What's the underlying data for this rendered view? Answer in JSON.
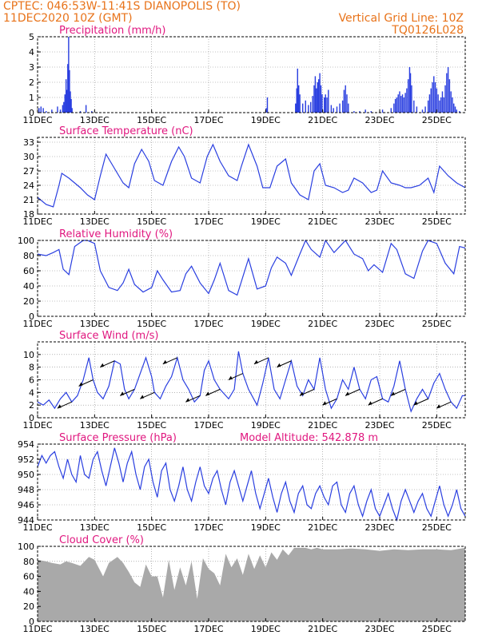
{
  "header": {
    "station": "CPTEC:   046:53W-11:41S   DIANOPOLIS (TO)",
    "run": "11DEC2020 10Z (GMT)",
    "grid_note": "Vertical Grid Line: 10Z",
    "model": "TQ0126L028"
  },
  "colors": {
    "header": "#e8731a",
    "title": "#e0177f",
    "series": "#2a3fe0",
    "cloud": "#a9a9a9",
    "frame": "#000000",
    "grid": "#888888"
  },
  "chart_data": [
    {
      "id": "precip",
      "type": "bar",
      "title": "Precipitation (mm/h)",
      "x_ticks": [
        "11DEC",
        "13DEC",
        "15DEC",
        "17DEC",
        "19DEC",
        "21DEC",
        "23DEC",
        "25DEC"
      ],
      "xlim": [
        0,
        15
      ],
      "ylim": [
        0,
        5
      ],
      "y_ticks": [
        0,
        1,
        2,
        3,
        4,
        5
      ],
      "grid": "dotted",
      "bar_width_days": 0.04,
      "values": [
        [
          0.05,
          0.3
        ],
        [
          0.12,
          0.4
        ],
        [
          0.2,
          0.3
        ],
        [
          0.3,
          0.1
        ],
        [
          0.5,
          0.2
        ],
        [
          0.7,
          0.4
        ],
        [
          0.8,
          0.2
        ],
        [
          0.88,
          0.5
        ],
        [
          0.92,
          0.7
        ],
        [
          0.96,
          1.2
        ],
        [
          1.0,
          2.2
        ],
        [
          1.03,
          1.5
        ],
        [
          1.06,
          3.2
        ],
        [
          1.09,
          5.0
        ],
        [
          1.12,
          2.8
        ],
        [
          1.15,
          1.4
        ],
        [
          1.18,
          0.9
        ],
        [
          1.21,
          0.3
        ],
        [
          1.5,
          0.1
        ],
        [
          1.7,
          0.5
        ],
        [
          1.9,
          0.1
        ],
        [
          8.02,
          0.3
        ],
        [
          8.06,
          1.0
        ],
        [
          9.05,
          0.6
        ],
        [
          9.09,
          1.6
        ],
        [
          9.12,
          2.9
        ],
        [
          9.16,
          1.8
        ],
        [
          9.2,
          1.2
        ],
        [
          9.3,
          0.6
        ],
        [
          9.4,
          0.8
        ],
        [
          9.5,
          0.5
        ],
        [
          9.58,
          0.7
        ],
        [
          9.65,
          1.1
        ],
        [
          9.7,
          1.8
        ],
        [
          9.74,
          2.4
        ],
        [
          9.78,
          1.6
        ],
        [
          9.82,
          2.0
        ],
        [
          9.86,
          2.2
        ],
        [
          9.9,
          2.6
        ],
        [
          9.94,
          1.8
        ],
        [
          9.98,
          1.2
        ],
        [
          10.06,
          1.0
        ],
        [
          10.1,
          1.2
        ],
        [
          10.15,
          1.0
        ],
        [
          10.2,
          1.5
        ],
        [
          10.3,
          0.5
        ],
        [
          10.38,
          0.3
        ],
        [
          10.5,
          0.4
        ],
        [
          10.6,
          0.6
        ],
        [
          10.7,
          0.8
        ],
        [
          10.75,
          1.5
        ],
        [
          10.8,
          1.8
        ],
        [
          10.85,
          1.2
        ],
        [
          10.9,
          0.6
        ],
        [
          11.1,
          0.1
        ],
        [
          11.3,
          0.1
        ],
        [
          11.5,
          0.2
        ],
        [
          11.7,
          0.1
        ],
        [
          12.1,
          0.2
        ],
        [
          12.4,
          0.3
        ],
        [
          12.5,
          0.6
        ],
        [
          12.55,
          0.9
        ],
        [
          12.6,
          1.0
        ],
        [
          12.65,
          1.2
        ],
        [
          12.7,
          1.4
        ],
        [
          12.75,
          1.1
        ],
        [
          12.8,
          1.2
        ],
        [
          12.85,
          1.0
        ],
        [
          12.9,
          1.3
        ],
        [
          12.95,
          1.6
        ],
        [
          13.0,
          2.2
        ],
        [
          13.05,
          3.0
        ],
        [
          13.08,
          2.6
        ],
        [
          13.12,
          1.8
        ],
        [
          13.2,
          0.8
        ],
        [
          13.3,
          0.4
        ],
        [
          13.5,
          0.2
        ],
        [
          13.6,
          0.4
        ],
        [
          13.7,
          0.8
        ],
        [
          13.75,
          1.2
        ],
        [
          13.8,
          1.6
        ],
        [
          13.85,
          2.0
        ],
        [
          13.9,
          2.4
        ],
        [
          13.95,
          2.0
        ],
        [
          14.0,
          1.6
        ],
        [
          14.05,
          1.2
        ],
        [
          14.1,
          0.8
        ],
        [
          14.15,
          1.0
        ],
        [
          14.2,
          1.4
        ],
        [
          14.25,
          1.0
        ],
        [
          14.3,
          1.8
        ],
        [
          14.35,
          2.6
        ],
        [
          14.4,
          3.0
        ],
        [
          14.45,
          2.2
        ],
        [
          14.5,
          1.4
        ],
        [
          14.55,
          1.0
        ],
        [
          14.6,
          0.6
        ],
        [
          14.65,
          0.4
        ],
        [
          14.7,
          0.2
        ],
        [
          14.8,
          0.1
        ]
      ]
    },
    {
      "id": "temp",
      "type": "line",
      "title": "Surface Temperature (nC)",
      "x_ticks": [
        "11DEC",
        "13DEC",
        "15DEC",
        "17DEC",
        "19DEC",
        "21DEC",
        "23DEC",
        "25DEC"
      ],
      "xlim": [
        0,
        15
      ],
      "ylim": [
        18,
        34
      ],
      "y_ticks": [
        18,
        21,
        24,
        27,
        30,
        33
      ],
      "grid": "dotted",
      "x": [
        0,
        0.3,
        0.55,
        0.75,
        0.85,
        1.1,
        1.5,
        1.75,
        2.0,
        2.2,
        2.4,
        2.65,
        3.0,
        3.2,
        3.4,
        3.65,
        3.9,
        4.1,
        4.4,
        4.7,
        4.95,
        5.15,
        5.4,
        5.7,
        5.95,
        6.15,
        6.4,
        6.7,
        7.0,
        7.15,
        7.4,
        7.7,
        7.9,
        8.15,
        8.4,
        8.7,
        8.9,
        9.2,
        9.5,
        9.7,
        9.9,
        10.1,
        10.4,
        10.7,
        10.9,
        11.1,
        11.4,
        11.7,
        11.9,
        12.1,
        12.4,
        12.7,
        12.9,
        13.1,
        13.4,
        13.7,
        13.9,
        14.1,
        14.4,
        14.7,
        15.0
      ],
      "y": [
        21.5,
        20.0,
        19.5,
        24,
        26.5,
        25.5,
        23.5,
        22.0,
        21.0,
        26,
        30.5,
        28,
        24.5,
        23.5,
        28.5,
        31.5,
        29,
        25.0,
        24.0,
        29,
        32.0,
        30,
        25.5,
        24.5,
        30,
        32.5,
        29,
        26.0,
        25.0,
        28,
        32.5,
        28,
        23.5,
        23.5,
        28,
        29.5,
        24.5,
        22.0,
        21.0,
        27,
        28.5,
        24,
        23.5,
        22.5,
        23,
        25.5,
        24.5,
        22.5,
        23.0,
        27.0,
        24.5,
        24.0,
        23.5,
        23.5,
        24,
        25.5,
        22.5,
        28.0,
        26.0,
        24.5,
        23.5
      ]
    },
    {
      "id": "rh",
      "type": "line",
      "title": "Relative Humidity (%)",
      "x_ticks": [
        "11DEC",
        "13DEC",
        "15DEC",
        "17DEC",
        "19DEC",
        "21DEC",
        "23DEC",
        "25DEC"
      ],
      "xlim": [
        0,
        15
      ],
      "ylim": [
        0,
        100
      ],
      "y_ticks": [
        0,
        20,
        40,
        60,
        80,
        100
      ],
      "grid": "dotted",
      "x": [
        0,
        0.3,
        0.55,
        0.75,
        0.9,
        1.1,
        1.3,
        1.6,
        1.75,
        2.0,
        2.2,
        2.5,
        2.8,
        3.0,
        3.2,
        3.4,
        3.7,
        4.0,
        4.2,
        4.4,
        4.7,
        5.0,
        5.2,
        5.4,
        5.7,
        6.0,
        6.2,
        6.4,
        6.7,
        7.0,
        7.2,
        7.4,
        7.7,
        8.0,
        8.2,
        8.4,
        8.7,
        8.9,
        9.2,
        9.4,
        9.6,
        9.9,
        10.1,
        10.4,
        10.6,
        10.8,
        11.1,
        11.4,
        11.6,
        11.8,
        12.1,
        12.4,
        12.6,
        12.9,
        13.2,
        13.5,
        13.7,
        14.0,
        14.3,
        14.6,
        14.8,
        15.0
      ],
      "y": [
        82,
        80,
        84,
        88,
        62,
        55,
        92,
        100,
        100,
        96,
        60,
        38,
        34,
        44,
        62,
        42,
        32,
        38,
        60,
        48,
        32,
        34,
        56,
        66,
        44,
        30,
        48,
        70,
        34,
        28,
        52,
        76,
        36,
        40,
        64,
        78,
        70,
        54,
        82,
        100,
        88,
        78,
        100,
        84,
        92,
        100,
        82,
        76,
        60,
        68,
        58,
        96,
        88,
        56,
        50,
        86,
        100,
        96,
        70,
        56,
        92,
        90
      ]
    },
    {
      "id": "wind",
      "type": "line",
      "title": "Surface Wind (m/s)",
      "x_ticks": [
        "11DEC",
        "13DEC",
        "15DEC",
        "17DEC",
        "19DEC",
        "21DEC",
        "23DEC",
        "25DEC"
      ],
      "xlim": [
        0,
        15
      ],
      "ylim": [
        0,
        12
      ],
      "y_ticks": [
        0,
        2,
        4,
        6,
        8,
        10
      ],
      "grid": "dotted",
      "x": [
        0,
        0.2,
        0.4,
        0.6,
        0.8,
        1.0,
        1.2,
        1.4,
        1.6,
        1.8,
        1.95,
        2.1,
        2.3,
        2.5,
        2.7,
        2.9,
        3.05,
        3.2,
        3.4,
        3.6,
        3.8,
        4.0,
        4.1,
        4.3,
        4.5,
        4.7,
        4.9,
        5.1,
        5.3,
        5.5,
        5.7,
        5.85,
        6.0,
        6.2,
        6.4,
        6.7,
        6.9,
        7.05,
        7.2,
        7.4,
        7.7,
        7.9,
        8.1,
        8.3,
        8.5,
        8.7,
        8.9,
        9.1,
        9.3,
        9.5,
        9.7,
        9.9,
        10.1,
        10.3,
        10.5,
        10.7,
        10.9,
        11.1,
        11.3,
        11.5,
        11.7,
        11.9,
        12.1,
        12.3,
        12.5,
        12.7,
        12.9,
        13.1,
        13.3,
        13.5,
        13.7,
        13.9,
        14.1,
        14.3,
        14.5,
        14.7,
        14.9,
        15.0
      ],
      "y": [
        2.5,
        2.0,
        2.8,
        1.5,
        3.0,
        4.0,
        2.5,
        3.5,
        6.0,
        9.5,
        6.0,
        4.0,
        3.0,
        5.0,
        9.0,
        8.5,
        4.5,
        3.0,
        4.5,
        7.0,
        9.5,
        6.5,
        4.0,
        3.0,
        5.0,
        6.5,
        9.5,
        6.0,
        4.5,
        2.5,
        3.5,
        7.5,
        9.0,
        6.0,
        4.5,
        3.0,
        4.5,
        10.5,
        7.0,
        4.5,
        2.0,
        5.5,
        9.5,
        4.5,
        3.0,
        6.0,
        9.0,
        5.0,
        3.5,
        6.0,
        4.5,
        9.5,
        4.5,
        1.5,
        3.0,
        6.0,
        4.5,
        8.0,
        4.5,
        3.0,
        6.0,
        6.5,
        3.0,
        2.5,
        5.0,
        9.0,
        4.5,
        1.0,
        3.0,
        4.5,
        3.0,
        5.5,
        7.0,
        4.5,
        2.5,
        1.5,
        3.5,
        3.5
      ]
    },
    {
      "id": "pressure",
      "type": "line",
      "title": "Surface Pressure (hPa)",
      "annotation": "Model Altitude: 542.878 m",
      "x_ticks": [
        "11DEC",
        "13DEC",
        "15DEC",
        "17DEC",
        "19DEC",
        "21DEC",
        "23DEC",
        "25DEC"
      ],
      "xlim": [
        0,
        15
      ],
      "ylim": [
        944,
        954
      ],
      "y_ticks": [
        944,
        946,
        948,
        950,
        952,
        954
      ],
      "grid": "dotted",
      "x": [
        0,
        0.15,
        0.3,
        0.45,
        0.6,
        0.75,
        0.9,
        1.05,
        1.2,
        1.35,
        1.5,
        1.65,
        1.8,
        1.95,
        2.1,
        2.25,
        2.4,
        2.55,
        2.7,
        2.85,
        3.0,
        3.15,
        3.3,
        3.45,
        3.6,
        3.75,
        3.9,
        4.05,
        4.2,
        4.35,
        4.5,
        4.65,
        4.8,
        4.95,
        5.1,
        5.25,
        5.4,
        5.55,
        5.7,
        5.85,
        6.0,
        6.15,
        6.3,
        6.45,
        6.6,
        6.75,
        6.9,
        7.05,
        7.2,
        7.35,
        7.5,
        7.65,
        7.8,
        7.95,
        8.1,
        8.25,
        8.4,
        8.55,
        8.7,
        8.85,
        9.0,
        9.15,
        9.3,
        9.45,
        9.6,
        9.75,
        9.9,
        10.05,
        10.2,
        10.35,
        10.5,
        10.65,
        10.8,
        10.95,
        11.1,
        11.25,
        11.4,
        11.55,
        11.7,
        11.85,
        12.0,
        12.15,
        12.3,
        12.45,
        12.6,
        12.75,
        12.9,
        13.05,
        13.2,
        13.35,
        13.5,
        13.65,
        13.8,
        13.95,
        14.1,
        14.25,
        14.4,
        14.55,
        14.7,
        14.85,
        15.0
      ],
      "y": [
        951.0,
        952.5,
        951.5,
        952.5,
        953.0,
        951.0,
        949.5,
        952.0,
        950.0,
        949.0,
        952.5,
        950.0,
        949.5,
        952.0,
        953.0,
        950.5,
        948.5,
        951.0,
        953.5,
        951.5,
        949.0,
        951.5,
        953.0,
        950.0,
        948.0,
        951.0,
        952.0,
        949.0,
        947.0,
        950.5,
        951.5,
        948.0,
        946.5,
        948.5,
        951.0,
        948.0,
        946.5,
        949.0,
        951.0,
        948.5,
        947.5,
        949.5,
        950.5,
        948.0,
        946.0,
        949.0,
        950.5,
        948.5,
        946.5,
        948.5,
        950.5,
        947.5,
        945.5,
        947.5,
        949.5,
        947.0,
        945.0,
        947.5,
        949.0,
        946.5,
        945.0,
        947.5,
        948.5,
        946.0,
        945.5,
        947.5,
        948.5,
        947.0,
        946.0,
        948.5,
        949.0,
        946.0,
        945.0,
        947.5,
        948.5,
        946.0,
        944.5,
        946.5,
        948.0,
        945.5,
        944.5,
        946.0,
        947.5,
        945.5,
        944.0,
        946.5,
        948.0,
        946.5,
        945.0,
        946.5,
        947.5,
        945.5,
        944.5,
        946.5,
        948.5,
        946.0,
        944.5,
        946.0,
        948.0,
        945.5,
        944.5
      ]
    },
    {
      "id": "cloud",
      "type": "area",
      "title": "Cloud Cover (%)",
      "x_ticks": [
        "11DEC",
        "13DEC",
        "15DEC",
        "17DEC",
        "19DEC",
        "21DEC",
        "23DEC",
        "25DEC"
      ],
      "xlim": [
        0,
        15
      ],
      "ylim": [
        0,
        100
      ],
      "y_ticks": [
        0,
        20,
        40,
        60,
        80,
        100
      ],
      "grid": "dotted",
      "x": [
        0,
        0.3,
        0.5,
        0.8,
        1.0,
        1.2,
        1.5,
        1.8,
        2.0,
        2.3,
        2.5,
        2.8,
        3.0,
        3.2,
        3.4,
        3.6,
        3.8,
        4.0,
        4.2,
        4.4,
        4.6,
        4.8,
        5.0,
        5.2,
        5.4,
        5.6,
        5.8,
        6.0,
        6.2,
        6.4,
        6.6,
        6.8,
        7.0,
        7.2,
        7.4,
        7.6,
        7.8,
        8.0,
        8.2,
        8.4,
        8.6,
        8.8,
        9.0,
        9.2,
        9.4,
        9.6,
        9.8,
        10.0,
        10.5,
        11.0,
        11.5,
        12.0,
        12.5,
        13.0,
        13.5,
        14.0,
        14.5,
        15.0
      ],
      "y": [
        82,
        80,
        78,
        76,
        80,
        78,
        74,
        86,
        82,
        60,
        78,
        86,
        78,
        66,
        52,
        46,
        76,
        60,
        60,
        32,
        82,
        42,
        72,
        48,
        80,
        30,
        84,
        70,
        64,
        48,
        90,
        72,
        84,
        62,
        90,
        70,
        88,
        72,
        92,
        82,
        96,
        88,
        98,
        98,
        98,
        96,
        98,
        96,
        96,
        97,
        96,
        94,
        96,
        95,
        96,
        96,
        95,
        98
      ]
    }
  ]
}
